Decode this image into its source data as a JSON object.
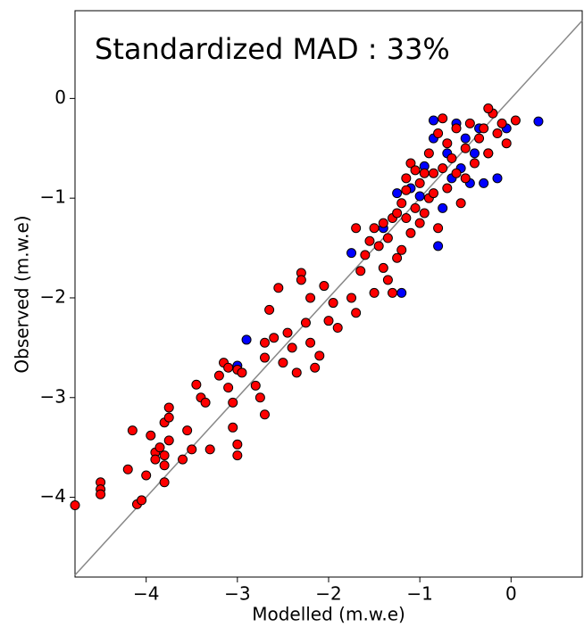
{
  "chart_data": {
    "type": "scatter",
    "annotation": "Standardized MAD : 33%",
    "x_label": "Modelled (m.w.e)",
    "y_label": "Observed (m.w.e)",
    "xlim": [
      -4.78,
      0.78
    ],
    "ylim": [
      -4.8,
      0.88
    ],
    "xticks": [
      {
        "value": -4,
        "label": "−4"
      },
      {
        "value": -3,
        "label": "−3"
      },
      {
        "value": -2,
        "label": "−2"
      },
      {
        "value": -1,
        "label": "−1"
      },
      0
    ],
    "yticks": [
      {
        "value": -4,
        "label": "−4"
      },
      {
        "value": -3,
        "label": "−3"
      },
      {
        "value": -2,
        "label": "−2"
      },
      {
        "value": -1,
        "label": "−1"
      },
      0
    ],
    "identity_line": {
      "color": "#888888"
    },
    "series": [
      {
        "color": "#0000ff",
        "x": [
          -2.9,
          -3.0,
          -1.75,
          -1.4,
          -1.25,
          -1.2,
          -1.1,
          -1.0,
          -0.95,
          -0.85,
          -0.8,
          -0.75,
          -0.7,
          -0.65,
          -0.6,
          -0.55,
          -0.5,
          -0.45,
          -0.35,
          -0.3,
          -0.25,
          -0.15,
          -0.05,
          0.3,
          -0.85,
          -0.4
        ],
        "y": [
          -2.42,
          -2.68,
          -1.55,
          -1.3,
          -0.95,
          -1.95,
          -0.9,
          -0.98,
          -0.68,
          -0.4,
          -1.48,
          -1.1,
          -0.55,
          -0.8,
          -0.25,
          -0.7,
          -0.4,
          -0.85,
          -0.3,
          -0.85,
          -0.55,
          -0.8,
          -0.3,
          -0.23,
          -0.22,
          -0.55
        ]
      },
      {
        "color": "#ff0000",
        "x": [
          -4.78,
          -4.5,
          -4.5,
          -4.5,
          -4.2,
          -4.15,
          -4.1,
          -4.05,
          -4.0,
          -3.95,
          -3.9,
          -3.9,
          -3.85,
          -3.8,
          -3.8,
          -3.8,
          -3.75,
          -3.75,
          -3.75,
          -3.8,
          -3.6,
          -3.55,
          -3.5,
          -3.45,
          -3.4,
          -3.35,
          -3.3,
          -3.2,
          -3.15,
          -3.1,
          -3.1,
          -3.05,
          -3.05,
          -3.0,
          -3.0,
          -3.0,
          -2.95,
          -2.8,
          -2.75,
          -2.7,
          -2.7,
          -2.7,
          -2.65,
          -2.6,
          -2.55,
          -2.5,
          -2.45,
          -2.4,
          -2.35,
          -2.3,
          -2.3,
          -2.25,
          -2.2,
          -2.2,
          -2.15,
          -2.1,
          -2.05,
          -2.0,
          -1.95,
          -1.9,
          -1.75,
          -1.7,
          -1.7,
          -1.65,
          -1.6,
          -1.55,
          -1.5,
          -1.5,
          -1.45,
          -1.4,
          -1.35,
          -1.35,
          -1.3,
          -1.3,
          -1.25,
          -1.2,
          -1.2,
          -1.15,
          -1.1,
          -1.1,
          -1.05,
          -1.0,
          -1.0,
          -0.95,
          -0.9,
          -0.9,
          -0.85,
          -0.8,
          -0.8,
          -0.75,
          -0.7,
          -0.7,
          -0.65,
          -0.6,
          -0.55,
          -0.5,
          -0.45,
          -0.4,
          -0.35,
          -0.3,
          -0.25,
          -0.2,
          -0.15,
          -0.1,
          -0.05,
          0.05,
          -0.25,
          -1.4,
          -1.25,
          -1.15,
          -0.95,
          -0.85,
          -1.15,
          -1.05,
          -0.6,
          -0.5,
          -0.75
        ],
        "y": [
          -4.08,
          -3.85,
          -3.92,
          -3.97,
          -3.72,
          -3.33,
          -4.07,
          -4.03,
          -3.78,
          -3.38,
          -3.55,
          -3.62,
          -3.5,
          -3.25,
          -3.58,
          -3.68,
          -3.1,
          -3.2,
          -3.43,
          -3.85,
          -3.62,
          -3.33,
          -3.52,
          -2.87,
          -3.0,
          -3.05,
          -3.52,
          -2.78,
          -2.65,
          -2.7,
          -2.9,
          -3.05,
          -3.3,
          -3.47,
          -3.58,
          -2.72,
          -2.75,
          -2.88,
          -3.0,
          -2.6,
          -2.45,
          -3.17,
          -2.12,
          -2.4,
          -1.9,
          -2.65,
          -2.35,
          -2.5,
          -2.75,
          -1.75,
          -1.82,
          -2.25,
          -2.0,
          -2.45,
          -2.7,
          -2.58,
          -1.88,
          -2.23,
          -2.05,
          -2.3,
          -2.0,
          -2.15,
          -1.3,
          -1.73,
          -1.57,
          -1.43,
          -1.95,
          -1.3,
          -1.48,
          -1.7,
          -1.82,
          -1.4,
          -1.2,
          -1.95,
          -1.6,
          -1.52,
          -1.05,
          -0.92,
          -1.35,
          -0.65,
          -1.1,
          -0.85,
          -1.25,
          -0.75,
          -1.0,
          -0.55,
          -0.95,
          -1.3,
          -0.35,
          -0.7,
          -0.9,
          -0.45,
          -0.6,
          -0.3,
          -1.05,
          -0.5,
          -0.25,
          -0.65,
          -0.4,
          -0.3,
          -0.55,
          -0.15,
          -0.35,
          -0.25,
          -0.45,
          -0.22,
          -0.1,
          -1.25,
          -1.15,
          -1.2,
          -1.15,
          -0.75,
          -0.8,
          -0.72,
          -0.75,
          -0.8,
          -0.2
        ]
      }
    ]
  }
}
